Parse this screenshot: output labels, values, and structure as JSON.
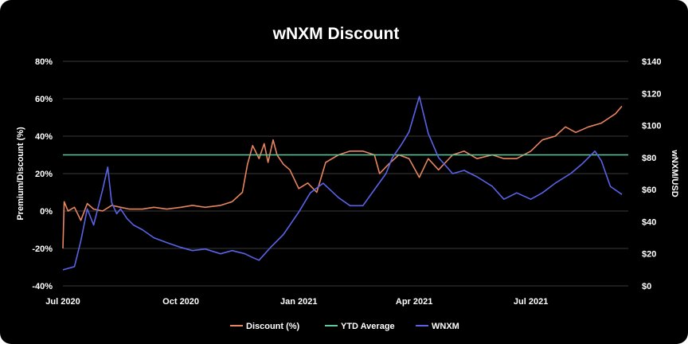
{
  "chart_data": {
    "type": "line",
    "title": "wNXM Discount",
    "ylabel_left": "Premium/Discount (%)",
    "ylabel_right": "wNXM/USD",
    "ylim_left": [
      -40,
      80
    ],
    "ylim_right": [
      0,
      140
    ],
    "yticks_left": [
      "-40%",
      "-20%",
      "0%",
      "20%",
      "40%",
      "60%",
      "80%"
    ],
    "yticks_right": [
      "$0",
      "$20",
      "$40",
      "$60",
      "$80",
      "$100",
      "$120",
      "$140"
    ],
    "xticks": [
      {
        "label": "Jul 2020",
        "date": "2020-07-01"
      },
      {
        "label": "Oct 2020",
        "date": "2020-10-01"
      },
      {
        "label": "Jan 2021",
        "date": "2021-01-01"
      },
      {
        "label": "Apr 2021",
        "date": "2021-04-01"
      },
      {
        "label": "Jul 2021",
        "date": "2021-07-01"
      }
    ],
    "xlim": [
      "2020-07-01",
      "2021-09-15"
    ],
    "grid": true,
    "legend_position": "bottom",
    "colors": {
      "discount": "#e8855f",
      "ytd": "#5ec99a",
      "wnxm": "#5a63e8"
    },
    "series": [
      {
        "name": "Discount (%)",
        "axis": "left",
        "dates": [
          "2020-07-01",
          "2020-07-02",
          "2020-07-05",
          "2020-07-10",
          "2020-07-15",
          "2020-07-20",
          "2020-07-25",
          "2020-08-01",
          "2020-08-08",
          "2020-08-15",
          "2020-08-22",
          "2020-09-01",
          "2020-09-10",
          "2020-09-20",
          "2020-10-01",
          "2020-10-10",
          "2020-10-20",
          "2020-11-01",
          "2020-11-10",
          "2020-11-18",
          "2020-11-22",
          "2020-11-26",
          "2020-12-01",
          "2020-12-05",
          "2020-12-08",
          "2020-12-12",
          "2020-12-15",
          "2020-12-20",
          "2020-12-25",
          "2021-01-01",
          "2021-01-08",
          "2021-01-15",
          "2021-01-22",
          "2021-02-01",
          "2021-02-10",
          "2021-02-20",
          "2021-03-01",
          "2021-03-05",
          "2021-03-12",
          "2021-03-20",
          "2021-03-28",
          "2021-04-05",
          "2021-04-12",
          "2021-04-20",
          "2021-05-01",
          "2021-05-10",
          "2021-05-20",
          "2021-06-01",
          "2021-06-10",
          "2021-06-20",
          "2021-07-01",
          "2021-07-10",
          "2021-07-20",
          "2021-07-28",
          "2021-08-05",
          "2021-08-15",
          "2021-08-25",
          "2021-09-05",
          "2021-09-10"
        ],
        "values": [
          -20,
          5,
          0,
          2,
          -5,
          4,
          1,
          0,
          3,
          2,
          1,
          1,
          2,
          1,
          2,
          3,
          2,
          3,
          5,
          10,
          25,
          35,
          28,
          36,
          26,
          38,
          30,
          25,
          22,
          12,
          15,
          10,
          26,
          30,
          32,
          32,
          30,
          20,
          25,
          30,
          28,
          18,
          28,
          22,
          30,
          32,
          28,
          30,
          28,
          28,
          32,
          38,
          40,
          45,
          42,
          45,
          47,
          52,
          56
        ]
      },
      {
        "name": "YTD Average",
        "axis": "left",
        "dates": [
          "2020-07-01",
          "2021-09-15"
        ],
        "values": [
          30,
          30
        ]
      },
      {
        "name": "WNXM",
        "axis": "right",
        "dates": [
          "2020-07-01",
          "2020-07-10",
          "2020-07-15",
          "2020-07-20",
          "2020-07-25",
          "2020-08-01",
          "2020-08-05",
          "2020-08-08",
          "2020-08-12",
          "2020-08-15",
          "2020-08-20",
          "2020-08-25",
          "2020-09-01",
          "2020-09-10",
          "2020-09-20",
          "2020-10-01",
          "2020-10-10",
          "2020-10-20",
          "2020-11-01",
          "2020-11-10",
          "2020-11-20",
          "2020-11-25",
          "2020-12-01",
          "2020-12-10",
          "2020-12-20",
          "2021-01-01",
          "2021-01-10",
          "2021-01-20",
          "2021-02-01",
          "2021-02-10",
          "2021-02-20",
          "2021-03-01",
          "2021-03-10",
          "2021-03-15",
          "2021-03-22",
          "2021-03-28",
          "2021-04-05",
          "2021-04-12",
          "2021-04-20",
          "2021-05-01",
          "2021-05-10",
          "2021-05-20",
          "2021-06-01",
          "2021-06-10",
          "2021-06-20",
          "2021-07-01",
          "2021-07-10",
          "2021-07-20",
          "2021-08-01",
          "2021-08-10",
          "2021-08-20",
          "2021-08-25",
          "2021-09-01",
          "2021-09-10"
        ],
        "values": [
          10,
          12,
          28,
          48,
          38,
          60,
          74,
          52,
          45,
          48,
          42,
          38,
          35,
          30,
          27,
          24,
          22,
          23,
          20,
          22,
          20,
          18,
          16,
          24,
          32,
          46,
          58,
          64,
          55,
          50,
          50,
          60,
          70,
          80,
          88,
          96,
          118,
          95,
          80,
          70,
          72,
          68,
          62,
          54,
          58,
          54,
          58,
          64,
          70,
          76,
          84,
          78,
          62,
          57
        ]
      }
    ]
  }
}
